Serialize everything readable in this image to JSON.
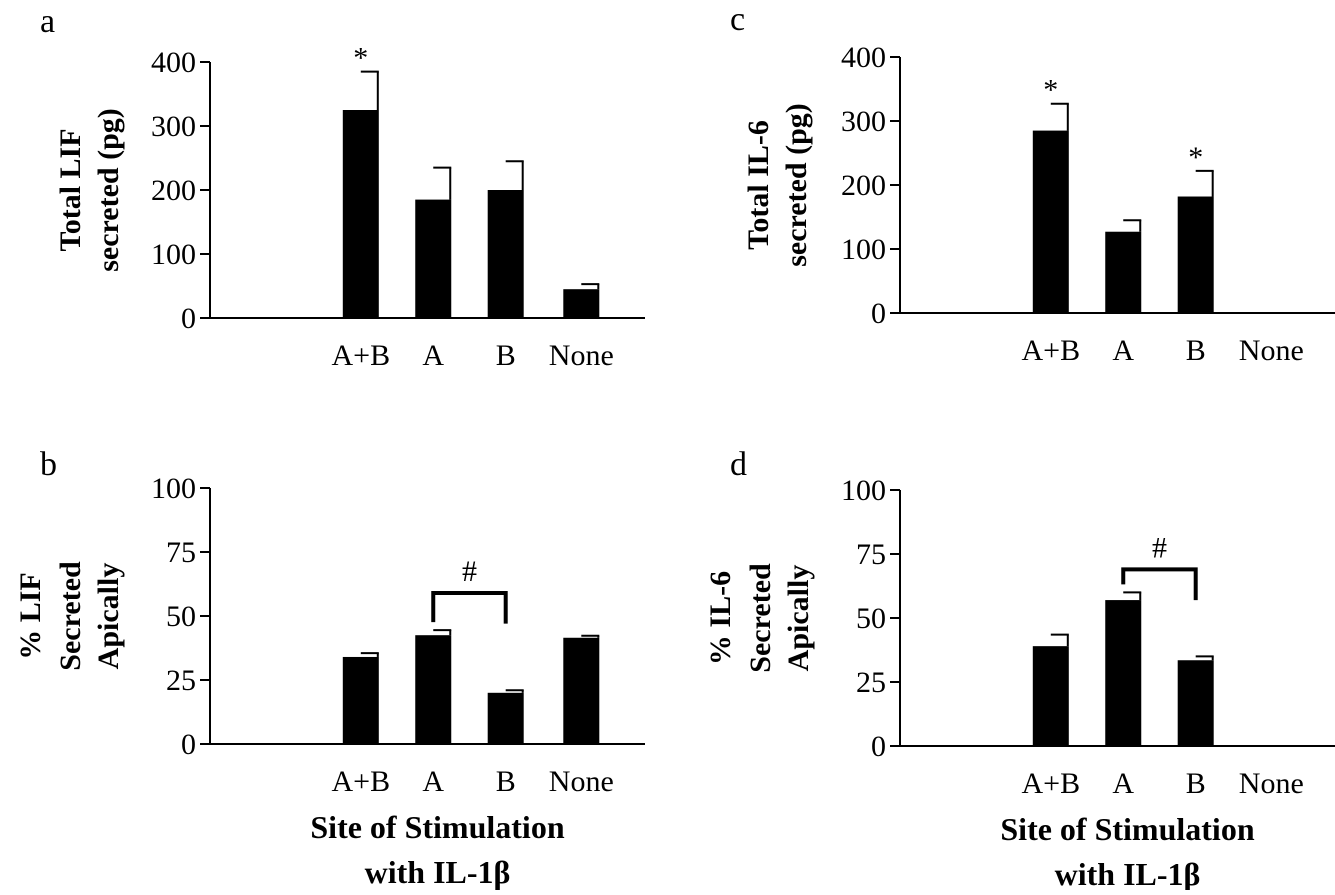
{
  "chart_data": [
    {
      "id": "a",
      "type": "bar",
      "panel_label": "a",
      "ylabel": [
        "Total LIF",
        "secreted (pg)"
      ],
      "xlabel": [],
      "categories": [
        "A+B",
        "A",
        "B",
        "None"
      ],
      "values": [
        325,
        185,
        200,
        45
      ],
      "error": [
        60,
        50,
        45,
        8
      ],
      "ylim": [
        0,
        400
      ],
      "yticks": [
        "0",
        "100",
        "200",
        "300",
        "400"
      ],
      "significance": [
        {
          "category": 0,
          "label": "*"
        }
      ],
      "bracket": null
    },
    {
      "id": "c",
      "type": "bar",
      "panel_label": "c",
      "ylabel": [
        "Total IL-6",
        "secreted (pg)"
      ],
      "xlabel": [],
      "categories": [
        "A+B",
        "A",
        "B",
        "None"
      ],
      "values": [
        285,
        127,
        182,
        null
      ],
      "error": [
        42,
        18,
        40,
        null
      ],
      "ylim": [
        0,
        400
      ],
      "yticks": [
        "0",
        "100",
        "200",
        "300",
        "400"
      ],
      "significance": [
        {
          "category": 0,
          "label": "*"
        },
        {
          "category": 2,
          "label": "*"
        }
      ],
      "bracket": null
    },
    {
      "id": "b",
      "type": "bar",
      "panel_label": "b",
      "ylabel": [
        "% LIF",
        "Secreted",
        "Apically"
      ],
      "xlabel": [
        "Site of Stimulation",
        "with IL-1β"
      ],
      "categories": [
        "A+B",
        "A",
        "B",
        "None"
      ],
      "values": [
        34,
        42.5,
        20,
        41.5
      ],
      "error": [
        1.5,
        2,
        1,
        0.8
      ],
      "ylim": [
        0,
        100
      ],
      "yticks": [
        "0",
        "25",
        "50",
        "75",
        "100"
      ],
      "significance": [],
      "bracket": {
        "from": 1,
        "to": 2,
        "level": 59,
        "label": "#"
      }
    },
    {
      "id": "d",
      "type": "bar",
      "panel_label": "d",
      "ylabel": [
        "% IL-6",
        "Secreted",
        "Apically"
      ],
      "xlabel": [
        "Site of Stimulation",
        "with IL-1β"
      ],
      "categories": [
        "A+B",
        "A",
        "B",
        "None"
      ],
      "values": [
        39,
        57,
        33.5,
        null
      ],
      "error": [
        4.5,
        3,
        1.5,
        null
      ],
      "ylim": [
        0,
        100
      ],
      "yticks": [
        "0",
        "25",
        "50",
        "75",
        "100"
      ],
      "significance": [],
      "bracket": {
        "from": 1,
        "to": 2,
        "level": 69,
        "label": "#"
      }
    }
  ]
}
